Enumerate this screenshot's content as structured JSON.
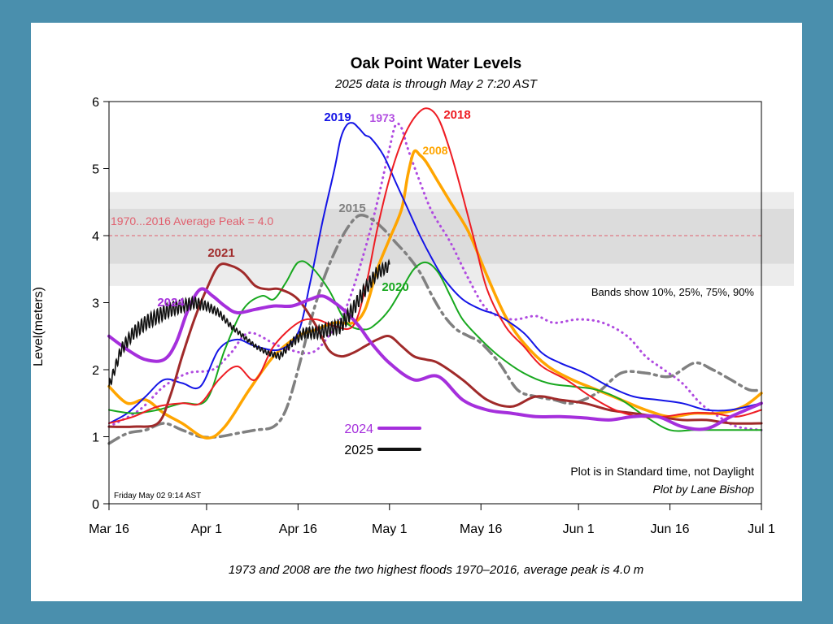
{
  "chart_data": {
    "type": "line",
    "title": "Oak Point Water Levels",
    "subtitle": "2025 data is through May 2 7:20 AST",
    "ylabel": "Level(meters)",
    "xlabel": "",
    "caption": "1973 and 2008 are the two highest floods 1970–2016, average peak is 4.0 m",
    "x_unit": "days since Mar 16",
    "xlim": [
      0,
      107
    ],
    "ylim": [
      0,
      6
    ],
    "xticks": [
      {
        "x": 0,
        "label": "Mar 16"
      },
      {
        "x": 16,
        "label": "Apr 1"
      },
      {
        "x": 31,
        "label": "Apr 16"
      },
      {
        "x": 46,
        "label": "May 1"
      },
      {
        "x": 61,
        "label": "May 16"
      },
      {
        "x": 77,
        "label": "Jun 1"
      },
      {
        "x": 92,
        "label": "Jun 16"
      },
      {
        "x": 107,
        "label": "Jul 1"
      }
    ],
    "yticks": [
      0,
      1,
      2,
      3,
      4,
      5,
      6
    ],
    "average_peak": {
      "value": 4.0,
      "label": "1970...2016 Average Peak = 4.0",
      "color": "#e0606e"
    },
    "bands": {
      "p10_p90": [
        3.25,
        4.65
      ],
      "p25_p75": [
        3.58,
        4.4
      ],
      "outer_color": "#ececec",
      "inner_color": "#dcdcdc",
      "note": "Bands show 10%, 25%, 75%, 90%"
    },
    "annotations": {
      "standard_time": "Plot is in Standard time, not Daylight",
      "credit": "Plot by Lane Bishop",
      "timestamp": "Friday May 02  9:14 AST"
    },
    "legend": {
      "placement": "bottom-center",
      "entries": [
        {
          "name": "2024",
          "color": "#a52fdc"
        },
        {
          "name": "2025",
          "color": "#111111"
        }
      ]
    },
    "series": [
      {
        "name": "1973",
        "label": "1973",
        "color": "#b04be0",
        "style": "dotted",
        "x": [
          0,
          5,
          9,
          13,
          17,
          20,
          23,
          28,
          33,
          36,
          39,
          42,
          44,
          46,
          47,
          48,
          49,
          51,
          53,
          56,
          59,
          62,
          66,
          70,
          73,
          77,
          81,
          85,
          88,
          91,
          94,
          97,
          100,
          103,
          107
        ],
        "y": [
          1.15,
          1.4,
          1.75,
          1.95,
          2.0,
          2.25,
          2.55,
          2.35,
          2.25,
          2.5,
          2.95,
          3.8,
          4.5,
          5.3,
          5.65,
          5.6,
          5.3,
          4.8,
          4.35,
          3.9,
          3.35,
          2.9,
          2.75,
          2.8,
          2.7,
          2.75,
          2.7,
          2.5,
          2.2,
          2.0,
          1.8,
          1.5,
          1.3,
          1.15,
          1.1
        ]
      },
      {
        "name": "2008",
        "label": "2008",
        "color": "#ffa500",
        "style": "solid",
        "x": [
          0,
          3,
          6,
          9,
          12,
          16,
          19,
          23,
          27,
          31,
          34,
          37,
          40,
          42,
          44,
          46,
          48,
          49,
          50,
          51,
          52,
          54,
          56,
          59,
          62,
          65,
          68,
          72,
          76,
          80,
          84,
          88,
          92,
          96,
          100,
          104,
          107
        ],
        "y": [
          1.75,
          1.5,
          1.55,
          1.35,
          1.2,
          0.98,
          1.15,
          1.7,
          2.2,
          2.5,
          2.6,
          2.7,
          2.7,
          2.9,
          3.5,
          3.95,
          4.4,
          4.9,
          5.25,
          5.2,
          5.1,
          4.8,
          4.5,
          4.05,
          3.4,
          2.8,
          2.4,
          2.05,
          1.85,
          1.7,
          1.55,
          1.4,
          1.3,
          1.35,
          1.35,
          1.45,
          1.65
        ]
      },
      {
        "name": "2018",
        "label": "2018",
        "color": "#ee1c23",
        "style": "solid",
        "x": [
          0,
          4,
          8,
          12,
          15,
          18,
          21,
          24,
          27,
          31,
          34,
          37,
          40,
          42,
          44,
          46,
          48,
          50,
          52,
          54,
          56,
          58,
          60,
          62,
          65,
          68,
          71,
          75,
          79,
          83,
          87,
          91,
          95,
          99,
          103,
          107
        ],
        "y": [
          1.2,
          1.3,
          1.45,
          1.5,
          1.5,
          1.85,
          2.05,
          1.85,
          2.35,
          2.7,
          2.75,
          2.65,
          2.65,
          3.2,
          4.1,
          4.85,
          5.4,
          5.75,
          5.9,
          5.75,
          5.25,
          4.6,
          3.9,
          3.2,
          2.65,
          2.35,
          2.05,
          1.85,
          1.6,
          1.4,
          1.3,
          1.3,
          1.35,
          1.35,
          1.3,
          1.4
        ]
      },
      {
        "name": "2019",
        "label": "2019",
        "color": "#1414e6",
        "style": "solid",
        "x": [
          0,
          3,
          6,
          9,
          12,
          15,
          18,
          21,
          24,
          28,
          31,
          33,
          35,
          37,
          38,
          39,
          40,
          41,
          42,
          43,
          45,
          47,
          49,
          51,
          53,
          55,
          58,
          61,
          64,
          68,
          71,
          74,
          78,
          82,
          86,
          90,
          94,
          98,
          102,
          107
        ],
        "y": [
          1.2,
          1.35,
          1.6,
          1.85,
          1.8,
          1.75,
          2.3,
          2.45,
          2.35,
          2.3,
          2.55,
          3.3,
          4.2,
          5.0,
          5.45,
          5.65,
          5.68,
          5.6,
          5.5,
          5.45,
          5.2,
          4.8,
          4.4,
          4.0,
          3.65,
          3.35,
          3.05,
          2.9,
          2.8,
          2.55,
          2.25,
          2.1,
          1.95,
          1.75,
          1.6,
          1.55,
          1.5,
          1.4,
          1.4,
          1.5
        ]
      },
      {
        "name": "2020",
        "label": "2020",
        "color": "#18a81f",
        "style": "solid",
        "x": [
          0,
          4,
          8,
          12,
          16,
          19,
          22,
          25,
          27,
          29,
          31,
          33,
          36,
          39,
          42,
          44,
          46,
          48,
          50,
          52,
          54,
          56,
          58,
          61,
          64,
          68,
          72,
          76,
          80,
          84,
          88,
          92,
          96,
          100,
          104,
          107
        ],
        "y": [
          1.4,
          1.35,
          1.4,
          1.5,
          1.55,
          2.3,
          2.9,
          3.1,
          3.05,
          3.3,
          3.6,
          3.55,
          3.2,
          2.7,
          2.6,
          2.7,
          2.9,
          3.2,
          3.5,
          3.6,
          3.45,
          3.1,
          2.75,
          2.45,
          2.2,
          1.95,
          1.8,
          1.75,
          1.7,
          1.55,
          1.3,
          1.1,
          1.1,
          1.1,
          1.1,
          1.1
        ]
      },
      {
        "name": "2021",
        "label": "2021",
        "color": "#a02a2a",
        "style": "solid",
        "x": [
          0,
          4,
          8,
          10,
          12,
          14,
          16,
          18,
          20,
          22,
          24,
          26,
          28,
          31,
          34,
          36,
          38,
          40,
          42,
          44,
          46,
          48,
          50,
          52,
          54,
          58,
          62,
          66,
          70,
          74,
          78,
          82,
          86,
          90,
          94,
          98,
          102,
          107
        ],
        "y": [
          1.15,
          1.15,
          1.2,
          1.6,
          2.2,
          2.75,
          3.2,
          3.55,
          3.55,
          3.45,
          3.25,
          3.2,
          3.2,
          3.05,
          2.65,
          2.3,
          2.2,
          2.25,
          2.35,
          2.45,
          2.5,
          2.35,
          2.2,
          2.15,
          2.1,
          1.85,
          1.55,
          1.45,
          1.6,
          1.55,
          1.5,
          1.4,
          1.35,
          1.3,
          1.25,
          1.25,
          1.2,
          1.2
        ]
      },
      {
        "name": "2015",
        "label": "2015",
        "color": "#808080",
        "style": "dashed",
        "x": [
          0,
          3,
          6,
          9,
          12,
          15,
          18,
          21,
          24,
          27,
          29,
          31,
          33,
          35,
          37,
          39,
          41,
          43,
          45,
          47,
          49,
          51,
          53,
          55,
          57,
          59,
          61,
          64,
          67,
          70,
          73,
          76,
          80,
          84,
          88,
          92,
          96,
          99,
          102,
          105,
          107
        ],
        "y": [
          0.9,
          1.05,
          1.1,
          1.2,
          1.1,
          1.0,
          1.0,
          1.05,
          1.1,
          1.15,
          1.4,
          2.0,
          2.7,
          3.3,
          3.75,
          4.1,
          4.3,
          4.25,
          4.1,
          3.9,
          3.7,
          3.45,
          3.1,
          2.8,
          2.6,
          2.5,
          2.4,
          2.1,
          1.7,
          1.6,
          1.55,
          1.5,
          1.65,
          1.95,
          1.95,
          1.9,
          2.1,
          2.0,
          1.85,
          1.7,
          1.7
        ]
      },
      {
        "name": "2024",
        "label": "2024",
        "color": "#a52fdc",
        "style": "solid",
        "x": [
          0,
          3,
          6,
          9,
          11,
          13,
          15,
          17,
          19,
          21,
          24,
          27,
          30,
          33,
          35,
          37,
          39,
          41,
          43,
          46,
          50,
          54,
          58,
          62,
          66,
          70,
          74,
          78,
          82,
          86,
          90,
          94,
          98,
          102,
          107
        ],
        "y": [
          2.5,
          2.3,
          2.15,
          2.15,
          2.4,
          2.9,
          3.2,
          3.1,
          2.95,
          2.85,
          2.9,
          2.95,
          2.95,
          3.05,
          3.1,
          3.0,
          2.85,
          2.65,
          2.4,
          2.1,
          1.85,
          1.9,
          1.55,
          1.4,
          1.35,
          1.3,
          1.3,
          1.28,
          1.25,
          1.3,
          1.3,
          1.15,
          1.12,
          1.3,
          1.5
        ]
      },
      {
        "name": "2025",
        "label": "2025",
        "color": "#111111",
        "style": "solid",
        "x": [
          0,
          2,
          4,
          6,
          8,
          10,
          12,
          14,
          16,
          18,
          20,
          22,
          24,
          26,
          28,
          30,
          32,
          34,
          36,
          38,
          40,
          42,
          44,
          45,
          46
        ],
        "y": [
          1.75,
          2.3,
          2.55,
          2.7,
          2.8,
          2.9,
          2.95,
          3.0,
          2.95,
          2.85,
          2.65,
          2.5,
          2.35,
          2.25,
          2.2,
          2.4,
          2.55,
          2.55,
          2.6,
          2.65,
          2.9,
          3.2,
          3.45,
          3.5,
          3.55
        ]
      }
    ]
  }
}
